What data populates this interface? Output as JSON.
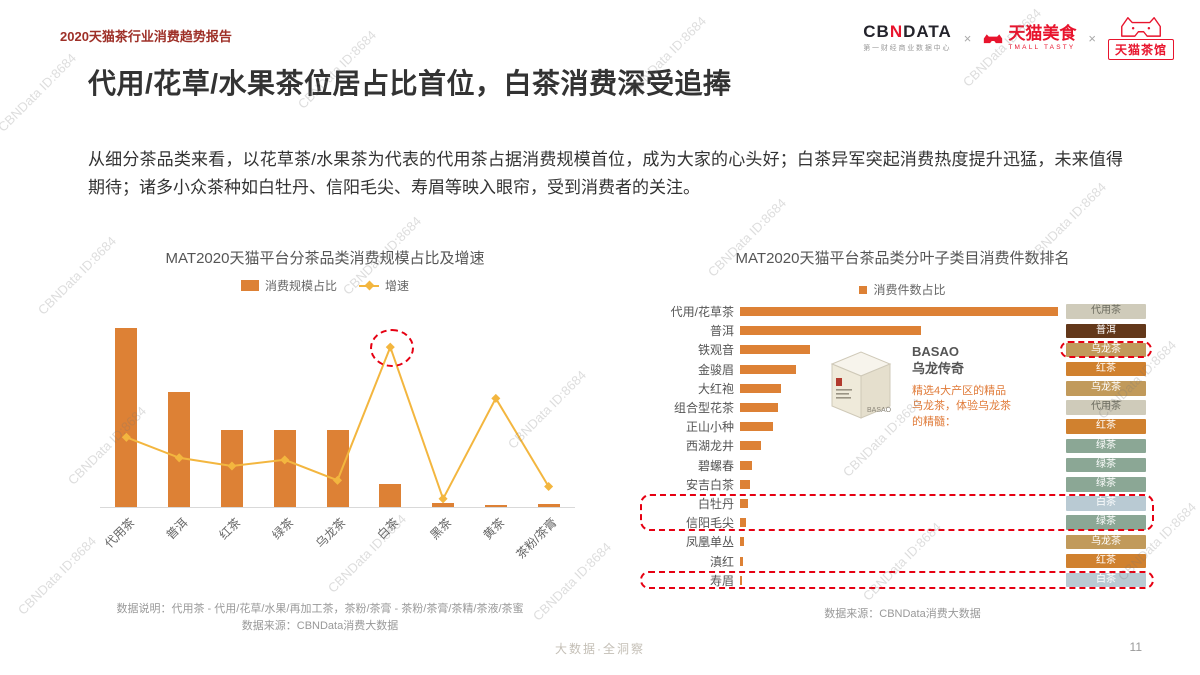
{
  "header": {
    "report_label": "2020天猫茶行业消费趋势报告",
    "logos": {
      "cbndata_prefix": "CB",
      "cbndata_n": "N",
      "cbndata_suffix": "DATA",
      "cbndata_sub": "第一财经商业数据中心",
      "separator": "×",
      "tmall_food": "天猫美食",
      "tmall_food_sub": "TMALL TASTY",
      "tmall_tea": "天猫茶馆"
    }
  },
  "title": "代用/花草/水果茶位居占比首位，白茶消费深受追捧",
  "body": "从细分茶品类来看，以花草茶/水果茶为代表的代用茶占据消费规模首位，成为大家的心头好；白茶异军突起消费热度提升迅猛，未来值得期待；诸多小众茶种如白牡丹、信阳毛尖、寿眉等映入眼帘，受到消费者的关注。",
  "watermark": "CBNData ID:8684",
  "chart_data": [
    {
      "type": "bar",
      "subtype": "bar+line combo",
      "title": "MAT2020天猫平台分茶品类消费规模占比及增速",
      "categories": [
        "代用茶",
        "普洱",
        "红茶",
        "绿茶",
        "乌龙茶",
        "白茶",
        "黑茶",
        "黄茶",
        "茶粉/茶膏"
      ],
      "series": [
        {
          "name": "消费规模占比",
          "type": "bar",
          "color": "#DD8135",
          "unit": "%",
          "values": [
            35,
            22.5,
            15,
            15,
            15,
            4.5,
            0.8,
            0.4,
            0.6
          ]
        },
        {
          "name": "增速",
          "type": "line",
          "color": "#F3B63F",
          "unit": "%",
          "values": [
            34,
            24,
            20,
            23,
            13,
            78,
            4,
            53,
            10
          ]
        }
      ],
      "bar_axis_max": 40,
      "line_axis_max": 100,
      "highlight_category": "白茶",
      "grid": false,
      "legend_position": "top",
      "notes": [
        "数据说明：代用茶 - 代用/花草/水果/再加工茶，茶粉/茶膏 - 茶粉/茶膏/茶精/茶液/茶蜜",
        "数据来源：CBNData消费大数据"
      ]
    },
    {
      "type": "bar",
      "orientation": "horizontal",
      "title": "MAT2020天猫平台茶品类分叶子类目消费件数排名",
      "legend": "消费件数占比",
      "bar_color": "#DD8135",
      "value_scale": "relative, longest bar = 100",
      "rows": [
        {
          "label": "代用/花草茶",
          "value": 100,
          "tag": "代用茶"
        },
        {
          "label": "普洱",
          "value": 57,
          "tag": "普洱"
        },
        {
          "label": "铁观音",
          "value": 22,
          "tag": "乌龙茶"
        },
        {
          "label": "金骏眉",
          "value": 17.5,
          "tag": "红茶"
        },
        {
          "label": "大红袍",
          "value": 13,
          "tag": "乌龙茶"
        },
        {
          "label": "组合型花茶",
          "value": 12,
          "tag": "代用茶"
        },
        {
          "label": "正山小种",
          "value": 10.5,
          "tag": "红茶"
        },
        {
          "label": "西湖龙井",
          "value": 6.5,
          "tag": "绿茶"
        },
        {
          "label": "碧螺春",
          "value": 3.7,
          "tag": "绿茶"
        },
        {
          "label": "安吉白茶",
          "value": 3.1,
          "tag": "绿茶"
        },
        {
          "label": "白牡丹",
          "value": 2.5,
          "tag": "白茶"
        },
        {
          "label": "信阳毛尖",
          "value": 1.9,
          "tag": "绿茶"
        },
        {
          "label": "凤凰单丛",
          "value": 1.3,
          "tag": "乌龙茶"
        },
        {
          "label": "滇红",
          "value": 1.0,
          "tag": "红茶"
        },
        {
          "label": "寿眉",
          "value": 0.7,
          "tag": "白茶"
        }
      ],
      "tag_colors": {
        "代用茶": "#CFCBBA",
        "普洱": "#63381A",
        "乌龙茶": "#C19A5B",
        "红茶": "#D0812F",
        "绿茶": "#8BA795",
        "白茶": "#B9CAD3"
      },
      "annotations": [
        {
          "type": "tag-box",
          "row": 2
        },
        {
          "type": "row-box",
          "rows": [
            10,
            11
          ]
        },
        {
          "type": "row-box",
          "rows": [
            14
          ]
        }
      ],
      "grid": false,
      "legend_position": "top",
      "note": "数据来源：CBNData消费大数据"
    }
  ],
  "callout": {
    "brand": "BASAO",
    "product": "乌龙传奇",
    "box_label": "BASAO",
    "desc_lines": [
      "精选4大产区的精品",
      "乌龙茶，体验乌龙茶",
      "的精髓："
    ]
  },
  "footer": {
    "slogan": "大数据·全洞察",
    "page": "11"
  },
  "accent_colors": {
    "highlight_red": "#E60012",
    "brand_red": "#E8142D",
    "bar_orange": "#DD8135",
    "line_yellow": "#F3B63F"
  }
}
